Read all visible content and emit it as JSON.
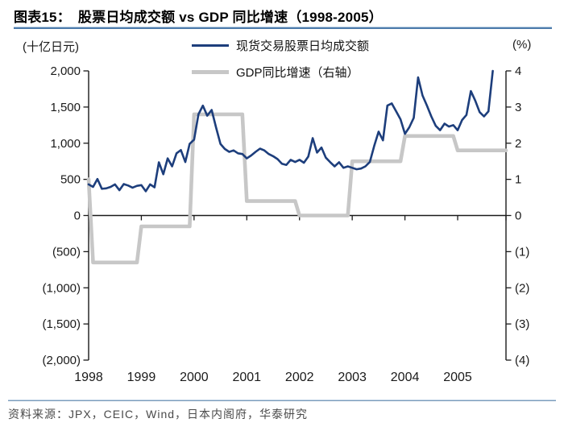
{
  "header": {
    "figure_label": "图表15：",
    "title": "股票日均成交额 vs GDP 同比增速（1998-2005）"
  },
  "axes_units": {
    "left": "(十亿日元)",
    "right": "(%)"
  },
  "legend": [
    {
      "label": "现货交易股票日均成交额",
      "color": "#1d3e7c"
    },
    {
      "label": "GDP同比增速（右轴）",
      "color": "#c7c7c7"
    }
  ],
  "footer": {
    "source": "资料来源：JPX，CEIC，Wind，日本内阁府，华泰研究"
  },
  "chart_data": {
    "type": "line",
    "title": "股票日均成交额 vs GDP 同比增速（1998-2005）",
    "grid": false,
    "legend_position": "top-center",
    "months_span": 96,
    "x_tick_years": [
      "1998",
      "1999",
      "2000",
      "2001",
      "2002",
      "2003",
      "2004",
      "2005"
    ],
    "left_axis": {
      "unit": "十亿日元",
      "min": -2000,
      "max": 2000,
      "tick_step": 500,
      "tick_labels": [
        "2,000",
        "1,500",
        "1,000",
        "500",
        "0",
        "(500)",
        "(1,000)",
        "(1,500)",
        "(2,000)"
      ]
    },
    "right_axis": {
      "unit": "%",
      "min": -4,
      "max": 4,
      "tick_step": 1,
      "tick_labels": [
        "4",
        "3",
        "2",
        "1",
        "0",
        "(1)",
        "(2)",
        "(3)",
        "(4)"
      ]
    },
    "series": [
      {
        "id": "spot-trading-value",
        "name": "现货交易股票日均成交额",
        "axis": "left",
        "color": "#1d3e7c",
        "frequency": "monthly",
        "start": "1998-01",
        "values": [
          430,
          395,
          505,
          370,
          375,
          395,
          430,
          350,
          435,
          415,
          385,
          410,
          420,
          335,
          430,
          390,
          735,
          570,
          790,
          680,
          860,
          905,
          740,
          990,
          1050,
          1400,
          1520,
          1380,
          1460,
          1220,
          990,
          920,
          880,
          900,
          860,
          850,
          790,
          830,
          880,
          925,
          900,
          850,
          820,
          780,
          715,
          700,
          770,
          740,
          770,
          730,
          815,
          1070,
          870,
          940,
          800,
          737,
          680,
          737,
          660,
          680,
          660,
          640,
          650,
          680,
          740,
          960,
          1160,
          1040,
          1520,
          1550,
          1440,
          1330,
          1130,
          1220,
          1350,
          1910,
          1660,
          1520,
          1370,
          1240,
          1180,
          1270,
          1230,
          1250,
          1180,
          1320,
          1390,
          1720,
          1590,
          1430,
          1370,
          1440,
          2000
        ]
      },
      {
        "id": "gdp-yoy",
        "name": "GDP同比增速（右轴）",
        "axis": "right",
        "color": "#c7c7c7",
        "frequency": "monthly",
        "start": "1998-01",
        "annual_values": {
          "1998": -1.3,
          "1999": -0.3,
          "2000": 2.8,
          "2001": 0.4,
          "2002": 0.0,
          "2003": 1.5,
          "2004": 2.2,
          "2005": 1.8
        },
        "initial_point": 1.0,
        "values": [
          1.0,
          -1.3,
          -1.3,
          -1.3,
          -1.3,
          -1.3,
          -1.3,
          -1.3,
          -1.3,
          -1.3,
          -1.3,
          -1.3,
          -0.3,
          -0.3,
          -0.3,
          -0.3,
          -0.3,
          -0.3,
          -0.3,
          -0.3,
          -0.3,
          -0.3,
          -0.3,
          -0.3,
          2.8,
          2.8,
          2.8,
          2.8,
          2.8,
          2.8,
          2.8,
          2.8,
          2.8,
          2.8,
          2.8,
          2.8,
          0.4,
          0.4,
          0.4,
          0.4,
          0.4,
          0.4,
          0.4,
          0.4,
          0.4,
          0.4,
          0.4,
          0.4,
          0.0,
          0.0,
          0.0,
          0.0,
          0.0,
          0.0,
          0.0,
          0.0,
          0.0,
          0.0,
          0.0,
          0.0,
          1.5,
          1.5,
          1.5,
          1.5,
          1.5,
          1.5,
          1.5,
          1.5,
          1.5,
          1.5,
          1.5,
          1.5,
          2.2,
          2.2,
          2.2,
          2.2,
          2.2,
          2.2,
          2.2,
          2.2,
          2.2,
          2.2,
          2.2,
          2.2,
          1.8,
          1.8,
          1.8,
          1.8,
          1.8,
          1.8,
          1.8,
          1.8,
          1.8,
          1.8,
          1.8,
          1.8
        ]
      }
    ]
  }
}
